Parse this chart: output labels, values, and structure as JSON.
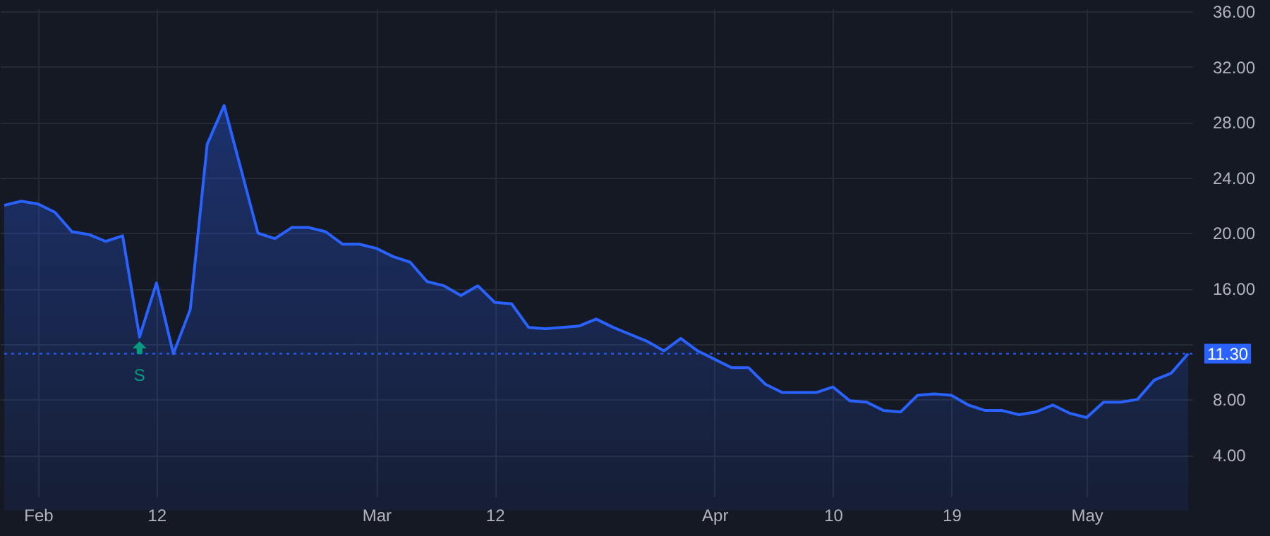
{
  "chart_data": {
    "type": "area",
    "categories": [
      null,
      null,
      "Feb",
      null,
      null,
      null,
      null,
      null,
      null,
      "12",
      null,
      null,
      null,
      null,
      null,
      null,
      null,
      null,
      null,
      null,
      null,
      null,
      "Mar",
      null,
      null,
      null,
      null,
      null,
      null,
      "12",
      null,
      null,
      null,
      null,
      null,
      null,
      null,
      null,
      null,
      null,
      null,
      null,
      "Apr",
      null,
      null,
      null,
      null,
      null,
      null,
      "10",
      null,
      null,
      null,
      null,
      null,
      null,
      "19",
      null,
      null,
      null,
      null,
      null,
      null,
      null,
      "May",
      null,
      null,
      null,
      null,
      null,
      null
    ],
    "series": [
      {
        "color": "#2962ff",
        "values": [
          22.0,
          22.3,
          22.1,
          21.5,
          20.1,
          19.9,
          19.4,
          19.8,
          12.5,
          16.4,
          11.3,
          14.5,
          26.4,
          29.2,
          24.6,
          20.0,
          19.6,
          20.4,
          20.4,
          20.1,
          19.2,
          19.2,
          18.9,
          18.3,
          17.9,
          16.5,
          16.2,
          15.5,
          16.2,
          15.0,
          14.9,
          13.2,
          13.1,
          13.2,
          13.3,
          13.8,
          13.2,
          12.7,
          12.2,
          11.5,
          12.4,
          11.5,
          10.9,
          10.3,
          10.3,
          9.1,
          8.5,
          8.5,
          8.5,
          8.9,
          7.9,
          7.8,
          7.2,
          7.1,
          8.3,
          8.4,
          8.3,
          7.6,
          7.2,
          7.2,
          6.9,
          7.1,
          7.6,
          7.0,
          6.7,
          7.8,
          7.8,
          8.0,
          9.4,
          9.9,
          11.3
        ]
      }
    ],
    "ylim": [
      1,
      36.2
    ],
    "yticks": [
      {
        "value": 4,
        "label": "4.00"
      },
      {
        "value": 8,
        "label": "8.00"
      },
      {
        "value": 12,
        "label": null
      },
      {
        "value": 16,
        "label": "16.00"
      },
      {
        "value": 20,
        "label": "20.00"
      },
      {
        "value": 24,
        "label": "24.00"
      },
      {
        "value": 28,
        "label": "28.00"
      },
      {
        "value": 32,
        "label": "32.00"
      },
      {
        "value": 36,
        "label": "36.00"
      }
    ],
    "grid": true,
    "ref_lines": [
      {
        "axis": "y",
        "value": 11.3,
        "label": "11.30",
        "color": "#2962ff",
        "line_style": "dotted"
      }
    ],
    "annotations": [
      {
        "text": "S",
        "y": 12.5
      }
    ]
  }
}
